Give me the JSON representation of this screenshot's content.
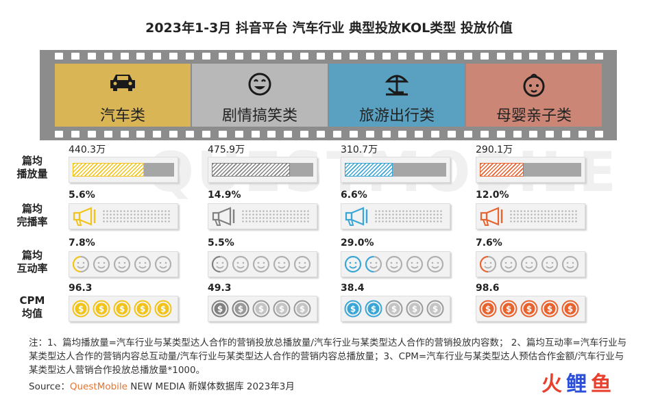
{
  "title": "2023年1-3月 抖音平台 汽车行业 典型投放KOL类型 投放价值",
  "watermark": "QUESTMOBILE",
  "categories": [
    {
      "name": "汽车类",
      "icon": "car-icon",
      "color": "#d9b556",
      "accent": "#f2c318"
    },
    {
      "name": "剧情搞笑类",
      "icon": "smile-icon",
      "color": "#b8b8b8",
      "accent": "#808080"
    },
    {
      "name": "旅游出行类",
      "icon": "beach-umbrella-icon",
      "color": "#5aa0c0",
      "accent": "#3aa6d6"
    },
    {
      "name": "母婴亲子类",
      "icon": "baby-face-icon",
      "color": "#cc8676",
      "accent": "#e8632d"
    }
  ],
  "row_labels": {
    "plays": "篇均播放量",
    "plays_l1": "篇均",
    "plays_l2": "播放量",
    "completion_l1": "篇均",
    "completion_l2": "完播率",
    "interaction_l1": "篇均",
    "interaction_l2": "互动率",
    "cpm_l1": "CPM",
    "cpm_l2": "均值"
  },
  "chart_data": {
    "type": "table",
    "categories": [
      "汽车类",
      "剧情搞笑类",
      "旅游出行类",
      "母婴亲子类"
    ],
    "series": [
      {
        "name": "篇均播放量",
        "values": [
          440.3,
          475.9,
          310.7,
          290.1
        ],
        "labels": [
          "440.3万",
          "475.9万",
          "310.7万",
          "290.1万"
        ]
      },
      {
        "name": "篇均完播率",
        "values": [
          5.6,
          14.9,
          6.6,
          12.0
        ],
        "labels": [
          "5.6%",
          "14.9%",
          "6.6%",
          "12.0%"
        ]
      },
      {
        "name": "篇均互动率",
        "values": [
          7.8,
          5.5,
          29.0,
          7.6
        ],
        "labels": [
          "7.8%",
          "5.5%",
          "29.0%",
          "7.6%"
        ]
      },
      {
        "name": "CPM均值",
        "values": [
          96.3,
          49.3,
          38.4,
          98.6
        ],
        "labels": [
          "96.3",
          "49.3",
          "38.4",
          "98.6"
        ]
      }
    ],
    "plays_fill_fraction": [
      0.7,
      0.77,
      0.47,
      0.43
    ],
    "interaction_icons_filled": [
      0.5,
      0.5,
      1.5,
      0.5
    ],
    "cpm_icons_filled": [
      5,
      1.5,
      2,
      5
    ]
  },
  "note": "注：1、篇均播放量=汽车行业与某类型达人合作的营销投放总播放量/汽车行业与某类型达人合作的营销投放内容数；  2、篇均互动率=汽车行业与某类型达人合作的营销内容总互动量/汽车行业与某类型达人合作的营销内容总播放量；3、CPM=汽车行业与某类型达人预估合作金额/汽车行业与某类型达人营销合作投放总播放量*1000。",
  "source_prefix": "Source：",
  "source_brand": "QuestMobile",
  "source_rest": " NEW MEDIA 新媒体数据库 2023年3月",
  "logo_text": "火鲤鱼"
}
